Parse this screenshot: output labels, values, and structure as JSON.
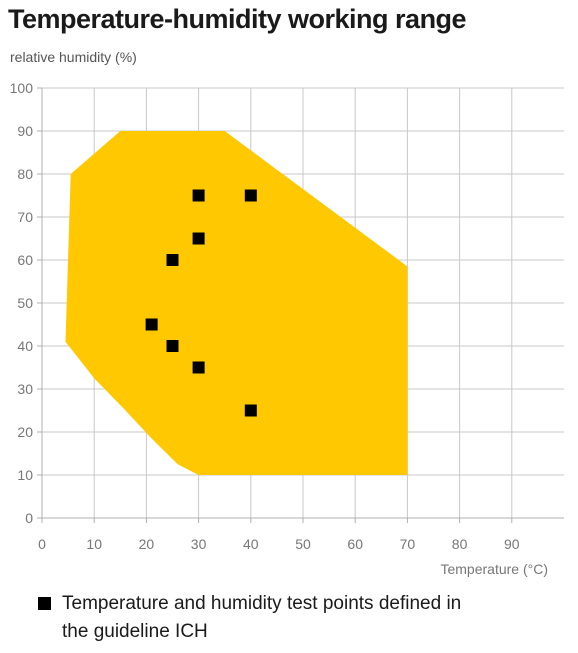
{
  "chart_data": {
    "type": "scatter",
    "title": "Temperature-humidity working range",
    "ylabel": "relative humidity (%)",
    "xlabel": "Temperature (°C)",
    "xlim": [
      0,
      100
    ],
    "ylim": [
      0,
      100
    ],
    "xticks": [
      0,
      10,
      20,
      30,
      40,
      50,
      60,
      70,
      80,
      90
    ],
    "yticks": [
      0,
      10,
      20,
      30,
      40,
      50,
      60,
      70,
      80,
      90,
      100
    ],
    "grid": true,
    "working_range": {
      "color": "#ffc800",
      "polygon": [
        [
          15,
          90
        ],
        [
          35,
          90
        ],
        [
          70,
          58.5
        ],
        [
          70,
          10
        ],
        [
          30,
          10
        ],
        [
          26,
          12.5
        ],
        [
          21,
          18.5
        ],
        [
          16,
          25
        ],
        [
          10,
          32.5
        ],
        [
          4.5,
          41
        ],
        [
          5.5,
          80
        ]
      ]
    },
    "series": [
      {
        "name": "Temperature and humidity test points defined in the guideline ICH",
        "color": "#000000",
        "points": [
          [
            30,
            75
          ],
          [
            40,
            75
          ],
          [
            30,
            65
          ],
          [
            25,
            60
          ],
          [
            21,
            45
          ],
          [
            25,
            40
          ],
          [
            30,
            35
          ],
          [
            40,
            25
          ]
        ]
      }
    ]
  },
  "legend": {
    "text": "Temperature and humidity test points defined in the guideline ICH"
  }
}
